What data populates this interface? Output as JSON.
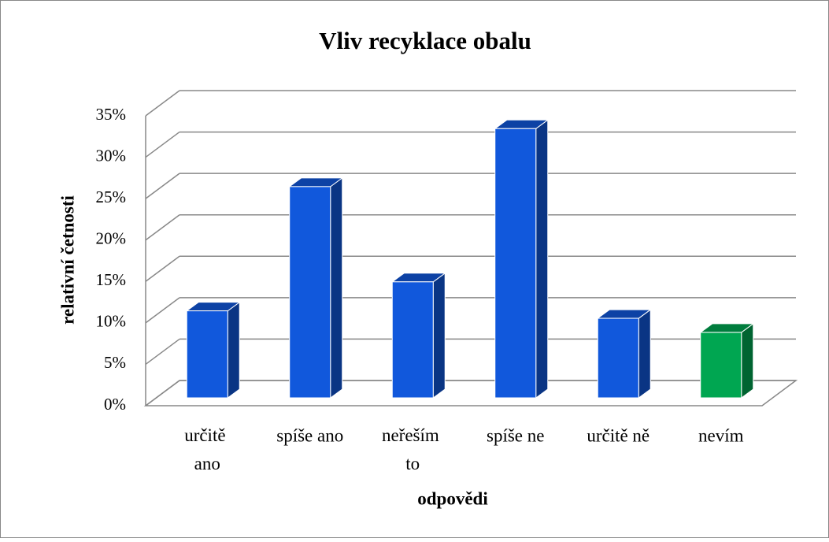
{
  "chart_data": {
    "type": "bar3d",
    "title": "Vliv recyklace obalu",
    "x_label": "odpovědi",
    "y_label": "relativní četnosti",
    "categories": [
      "určitě ano",
      "spíše ano",
      "neřeším to",
      "spíše ne",
      "určitě ně",
      "nevím"
    ],
    "series": [
      {
        "name": "relativní četnosti",
        "values": [
          10.5,
          25.5,
          14,
          32.5,
          9.6,
          7.9
        ],
        "colors": [
          "#1158dc",
          "#1158dc",
          "#1158dc",
          "#1158dc",
          "#1158dc",
          "#00a651"
        ]
      }
    ],
    "ylim": [
      0,
      35
    ],
    "yticks": [
      {
        "value": 0,
        "label": "0%"
      },
      {
        "value": 5,
        "label": "5%"
      },
      {
        "value": 10,
        "label": "10%"
      },
      {
        "value": 15,
        "label": "15%"
      },
      {
        "value": 20,
        "label": "20%"
      },
      {
        "value": 25,
        "label": "25%"
      },
      {
        "value": 30,
        "label": "30%"
      },
      {
        "value": 35,
        "label": "35%"
      }
    ],
    "grid": true
  }
}
